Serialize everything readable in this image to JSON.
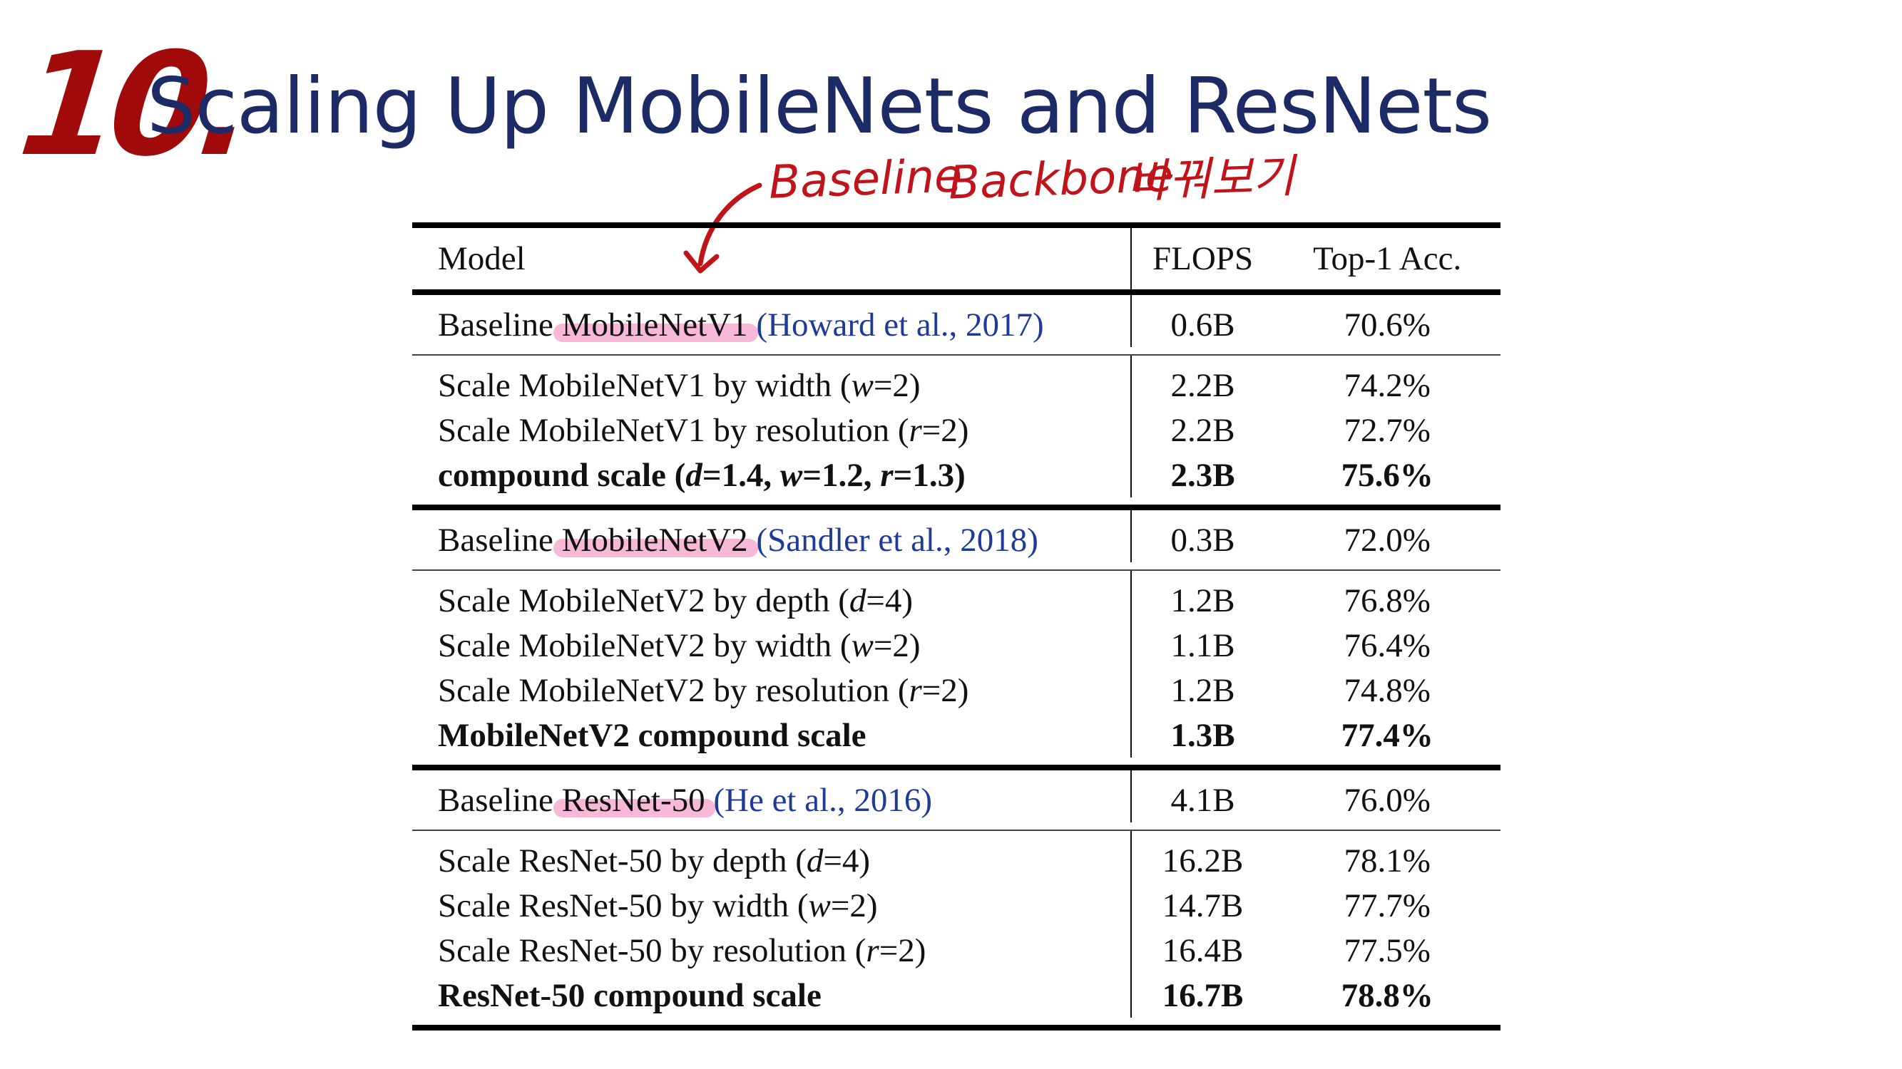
{
  "slide": {
    "number": "10.",
    "title": "Scaling Up MobileNets and ResNets",
    "annotation_parts": [
      "Baseline",
      "Backbone",
      "바꿔보기"
    ]
  },
  "table": {
    "headers": [
      "Model",
      "FLOPS",
      "Top-1 Acc."
    ],
    "groups": [
      {
        "rows": [
          {
            "name": "Baseline ",
            "highlight": "MobileNetV1",
            "cite": "(Howard et al., 2017)",
            "flops": "0.6B",
            "acc": "70.6%"
          }
        ]
      },
      {
        "rows": [
          {
            "name": "Scale MobileNetV1 by width (w=2)",
            "flops": "2.2B",
            "acc": "74.2%"
          },
          {
            "name": "Scale MobileNetV1 by resolution (r=2)",
            "flops": "2.2B",
            "acc": "72.7%"
          },
          {
            "name": "compound scale (d=1.4, w=1.2, r=1.3)",
            "flops": "2.3B",
            "acc": "75.6%",
            "bold": true
          }
        ]
      },
      {
        "rows": [
          {
            "name": "Baseline ",
            "highlight": "MobileNetV2",
            "cite": "(Sandler et al., 2018)",
            "flops": "0.3B",
            "acc": "72.0%"
          }
        ]
      },
      {
        "rows": [
          {
            "name": "Scale MobileNetV2 by depth (d=4)",
            "flops": "1.2B",
            "acc": "76.8%"
          },
          {
            "name": "Scale MobileNetV2 by width (w=2)",
            "flops": "1.1B",
            "acc": "76.4%"
          },
          {
            "name": "Scale MobileNetV2 by resolution (r=2)",
            "flops": "1.2B",
            "acc": "74.8%"
          },
          {
            "name": "MobileNetV2 compound scale",
            "flops": "1.3B",
            "acc": "77.4%",
            "bold": true
          }
        ]
      },
      {
        "rows": [
          {
            "name": "Baseline ",
            "highlight": "ResNet-50",
            "cite": "(He et al., 2016)",
            "flops": "4.1B",
            "acc": "76.0%"
          }
        ]
      },
      {
        "rows": [
          {
            "name": "Scale ResNet-50 by depth (d=4)",
            "flops": "16.2B",
            "acc": "78.1%"
          },
          {
            "name": "Scale ResNet-50 by width (w=2)",
            "flops": "14.7B",
            "acc": "77.7%"
          },
          {
            "name": "Scale ResNet-50 by resolution (r=2)",
            "flops": "16.4B",
            "acc": "77.5%"
          },
          {
            "name": "ResNet-50 compound scale",
            "flops": "16.7B",
            "acc": "78.8%",
            "bold": true
          }
        ]
      }
    ],
    "separators": [
      "thin",
      "thick",
      "thin",
      "thick",
      "thin"
    ]
  },
  "colors": {
    "title": "#1c2a66",
    "annotation": "#c0141a",
    "highlight": "#f064aa",
    "citation": "#1f3b9a"
  }
}
